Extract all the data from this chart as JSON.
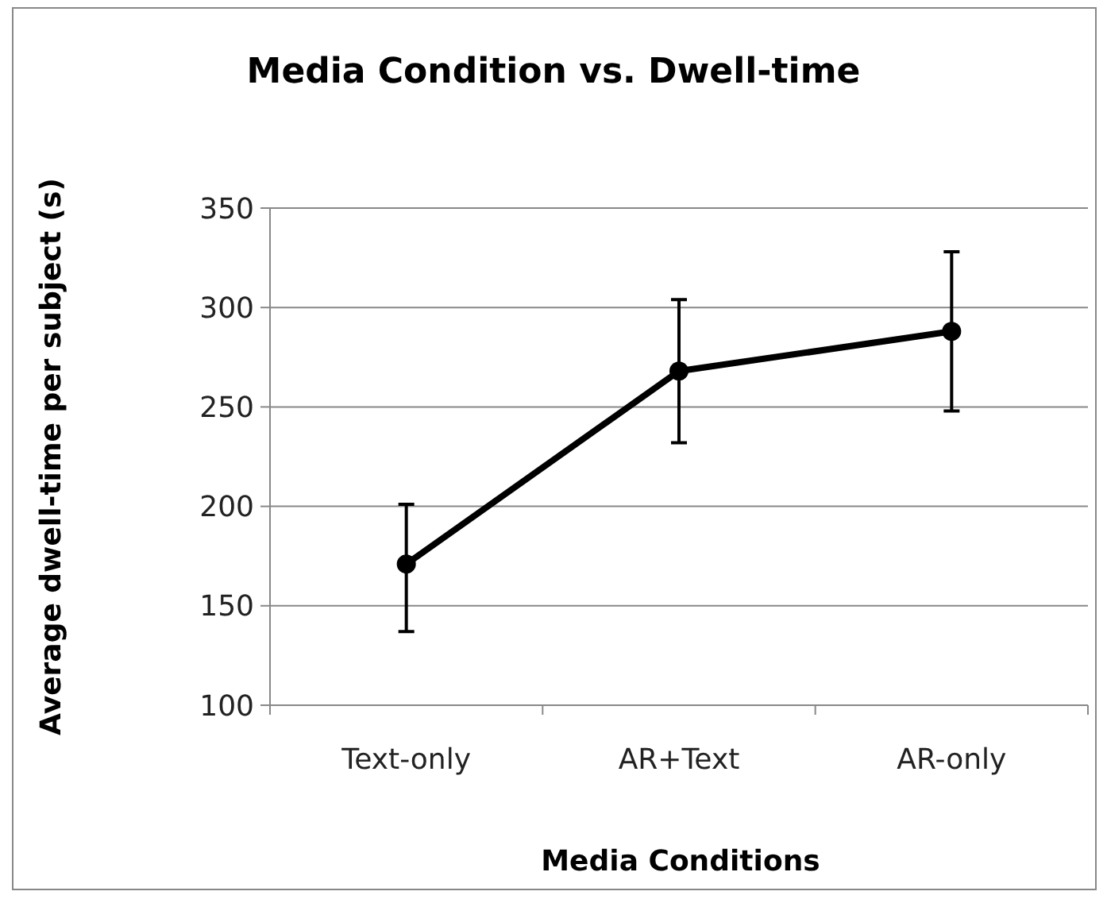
{
  "chart_data": {
    "type": "line",
    "title": "Media Condition vs. Dwell-time",
    "xlabel": "Media Conditions",
    "ylabel": "Average dwell-time per subject (s)",
    "categories": [
      "Text-only",
      "AR+Text",
      "AR-only"
    ],
    "series": [
      {
        "color": "#000000",
        "values": [
          171,
          268,
          288
        ],
        "errors": [
          [
            137,
            201
          ],
          [
            232,
            304
          ],
          [
            248,
            328
          ]
        ]
      }
    ],
    "ylim": [
      100,
      350
    ],
    "yticks": [
      100,
      150,
      200,
      250,
      300,
      350
    ],
    "grid": "y",
    "marker": "circle",
    "line_style": "solid"
  }
}
